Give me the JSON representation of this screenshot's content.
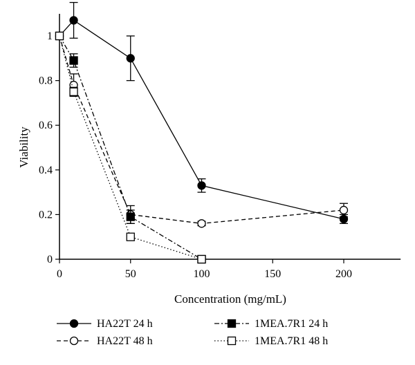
{
  "chart_data": {
    "type": "line",
    "xlabel": "Concentration (mg/mL)",
    "ylabel": "Viability",
    "xlim": [
      0,
      240
    ],
    "ylim": [
      0,
      1.1
    ],
    "xticks": [
      "0",
      "50",
      "100",
      "150",
      "200"
    ],
    "yticks": [
      "0",
      "0.2",
      "0.4",
      "0.6",
      "0.8",
      "1"
    ],
    "grid": false,
    "legend_position": "bottom",
    "series": [
      {
        "name": "HA22T 24 h",
        "marker": "filled-circle",
        "line": "solid",
        "x": [
          0,
          10,
          50,
          100,
          200
        ],
        "y": [
          1,
          1.07,
          0.9,
          0.33,
          0.18
        ],
        "err": [
          0,
          0.08,
          0.1,
          0.03,
          0.02
        ]
      },
      {
        "name": "HA22T 48 h",
        "marker": "open-circle",
        "line": "dashed",
        "x": [
          0,
          10,
          50,
          100,
          200
        ],
        "y": [
          1,
          0.78,
          0.2,
          0.16,
          0.22
        ],
        "err": [
          0,
          0.05,
          0.04,
          0.01,
          0.03
        ]
      },
      {
        "name": "1MEA.7R1 24 h",
        "marker": "filled-square",
        "line": "dashdot",
        "x": [
          0,
          10,
          50,
          100
        ],
        "y": [
          1,
          0.89,
          0.19,
          0
        ],
        "err": [
          0,
          0.03,
          0.03,
          0
        ]
      },
      {
        "name": "1MEA.7R1 48 h",
        "marker": "open-square",
        "line": "dotted",
        "x": [
          0,
          10,
          50,
          100
        ],
        "y": [
          1,
          0.75,
          0.1,
          0
        ],
        "err": [
          0,
          0.02,
          0,
          0
        ]
      }
    ]
  }
}
